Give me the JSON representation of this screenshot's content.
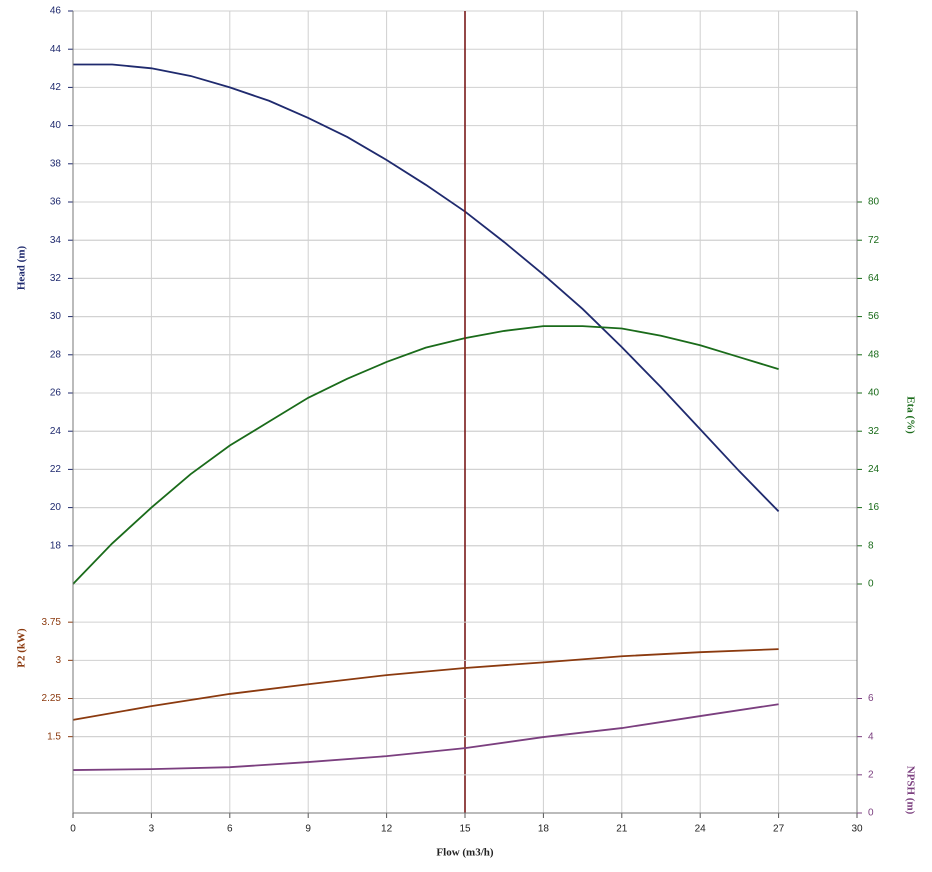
{
  "chart_data": [
    {
      "type": "line",
      "ylabel": "Head (m)",
      "y2label": "Eta (%)",
      "xlim": [
        0,
        30
      ],
      "ylim": [
        16,
        46
      ],
      "yticks": [
        18,
        20,
        22,
        24,
        26,
        28,
        30,
        32,
        34,
        36,
        38,
        40,
        42,
        44,
        46
      ],
      "y2lim": [
        0,
        120
      ],
      "y2ticks": [
        0,
        8,
        16,
        24,
        32,
        40,
        48,
        56,
        64,
        72,
        80
      ],
      "vline": 15,
      "vline_color": "#7a1a1a",
      "grid": true,
      "x": [
        0,
        1.5,
        3,
        4.5,
        6,
        7.5,
        9,
        10.5,
        12,
        13.5,
        15,
        16.5,
        18,
        19.5,
        21,
        22.5,
        24,
        25.5,
        27
      ],
      "series": [
        {
          "name": "Head",
          "color": "#1f2a6e",
          "values": [
            43.2,
            43.2,
            43.0,
            42.6,
            42.0,
            41.3,
            40.4,
            39.4,
            38.2,
            36.9,
            35.5,
            33.9,
            32.2,
            30.4,
            28.4,
            26.3,
            24.1,
            21.9,
            19.8
          ]
        },
        {
          "name": "Eta",
          "color": "#1a6b1a",
          "axis": "y2",
          "values": [
            0,
            8.5,
            16,
            23,
            29,
            34,
            39,
            43,
            46.5,
            49.5,
            51.5,
            53,
            54,
            54,
            53.5,
            52,
            50,
            47.5,
            45
          ]
        }
      ]
    },
    {
      "type": "line",
      "xlabel": "Flow (m3/h)",
      "ylabel": "P2 (kW)",
      "y2label": "NPSH (m)",
      "xlim": [
        0,
        30
      ],
      "xticks": [
        0,
        3,
        6,
        9,
        12,
        15,
        18,
        21,
        24,
        27,
        30
      ],
      "ylim": [
        0,
        4.5
      ],
      "yticks": [
        1.5,
        2.25,
        3,
        3.75
      ],
      "y2lim": [
        0,
        12
      ],
      "y2ticks": [
        0,
        2,
        4,
        6
      ],
      "grid": true,
      "x": [
        0,
        3,
        6,
        9,
        12,
        15,
        18,
        21,
        24,
        27
      ],
      "series": [
        {
          "name": "P2",
          "color": "#8b3a0f",
          "values": [
            1.83,
            2.1,
            2.34,
            2.53,
            2.71,
            2.85,
            2.96,
            3.08,
            3.16,
            3.22
          ]
        },
        {
          "name": "NPSH",
          "color": "#7b3f7f",
          "axis": "y2",
          "values": [
            2.25,
            2.3,
            2.4,
            2.67,
            2.98,
            3.4,
            3.98,
            4.45,
            5.08,
            5.7
          ]
        }
      ]
    }
  ]
}
